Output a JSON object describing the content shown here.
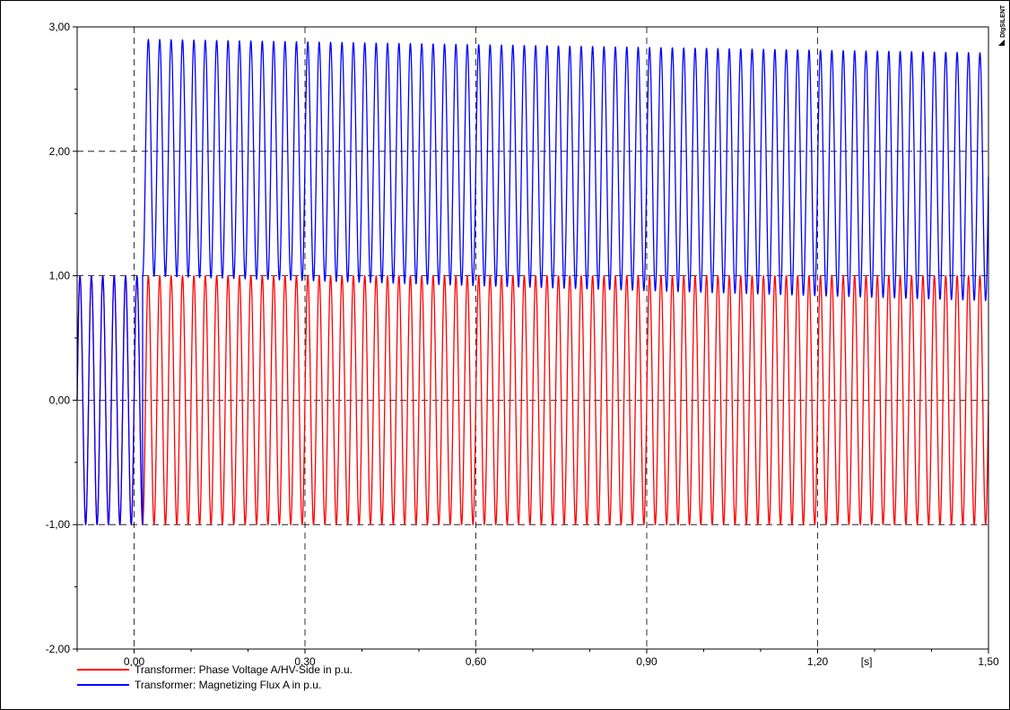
{
  "watermark": "DIgSILENT",
  "chart_data": {
    "type": "line",
    "title": "",
    "xlabel": "[s]",
    "ylabel": "",
    "xlim": [
      -0.1,
      1.5
    ],
    "ylim": [
      -2.0,
      3.0
    ],
    "x_ticks": [
      0.0,
      0.3,
      0.6,
      0.9,
      1.2,
      1.5
    ],
    "x_tick_labels": [
      "0,00",
      "0,30",
      "0,60",
      "0,90",
      "1,20",
      "1,50"
    ],
    "y_ticks": [
      -2.0,
      -1.0,
      0.0,
      1.0,
      2.0,
      3.0
    ],
    "y_tick_labels": [
      "-2,00",
      "-1,00",
      "0,00",
      "1,00",
      "2,00",
      "3,00"
    ],
    "grid": true,
    "legend_position": "bottom-left",
    "series": [
      {
        "name": "Transformer: Phase Voltage A/HV-Side in p.u.",
        "color": "#ff0000",
        "kind": "sine",
        "frequency_hz": 50,
        "amplitude": 1.0,
        "offset": 0.0,
        "x_range": [
          -0.1,
          1.5
        ]
      },
      {
        "name": "Transformer: Magnetizing Flux A in p.u.",
        "color": "#0000ff",
        "kind": "sine",
        "frequency_hz": 50,
        "pre_switch": {
          "x_range": [
            -0.1,
            0.015
          ],
          "amplitude": 1.0,
          "offset": 0.0
        },
        "post_switch": {
          "x_range": [
            0.015,
            1.5
          ],
          "max_start": 2.9,
          "max_end": 2.79,
          "min_start": 1.0,
          "min_end": 0.8
        }
      }
    ]
  }
}
